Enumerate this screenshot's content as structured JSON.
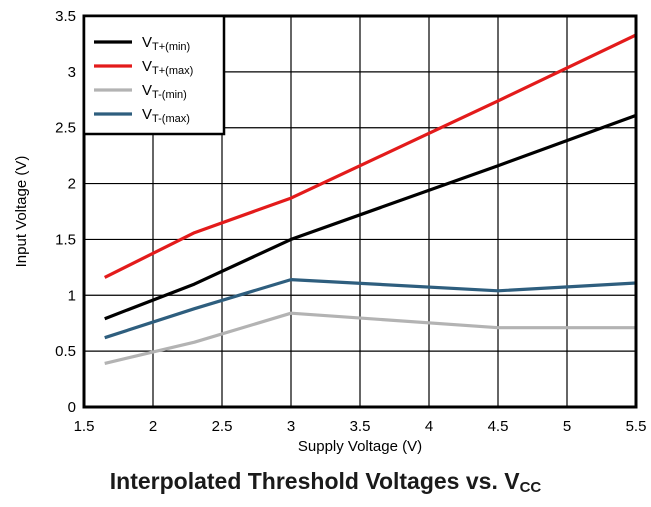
{
  "chart_data": {
    "type": "line",
    "caption_main": "Interpolated Threshold Voltages vs. V",
    "caption_sub": "CC",
    "xlabel": "Supply Voltage (V)",
    "ylabel": "Input Voltage (V)",
    "xlim": [
      1.5,
      5.5
    ],
    "ylim": [
      0,
      3.5
    ],
    "xticks": [
      "1.5",
      "2",
      "2.5",
      "3",
      "3.5",
      "4",
      "4.5",
      "5",
      "5.5"
    ],
    "yticks": [
      "0",
      "0.5",
      "1",
      "1.5",
      "2",
      "2.5",
      "3",
      "3.5"
    ],
    "grid": true,
    "legend_position": "top-left",
    "series": [
      {
        "name_main": "V",
        "name_sub": "T+(min)",
        "color": "#000000",
        "x": [
          1.65,
          2.3,
          3.0,
          4.5,
          5.5
        ],
        "y": [
          0.79,
          1.1,
          1.5,
          2.16,
          2.61
        ]
      },
      {
        "name_main": "V",
        "name_sub": "T+(max)",
        "color": "#e31b1b",
        "x": [
          1.65,
          2.3,
          3.0,
          4.5,
          5.5
        ],
        "y": [
          1.16,
          1.56,
          1.87,
          2.74,
          3.33
        ]
      },
      {
        "name_main": "V",
        "name_sub": "T-(min)",
        "color": "#b3b3b3",
        "x": [
          1.65,
          2.3,
          3.0,
          4.5,
          5.5
        ],
        "y": [
          0.39,
          0.58,
          0.84,
          0.71,
          0.71
        ]
      },
      {
        "name_main": "V",
        "name_sub": "T-(max)",
        "color": "#2e5e7e",
        "x": [
          1.65,
          2.3,
          3.0,
          4.5,
          5.5
        ],
        "y": [
          0.62,
          0.88,
          1.14,
          1.04,
          1.11
        ]
      }
    ]
  }
}
